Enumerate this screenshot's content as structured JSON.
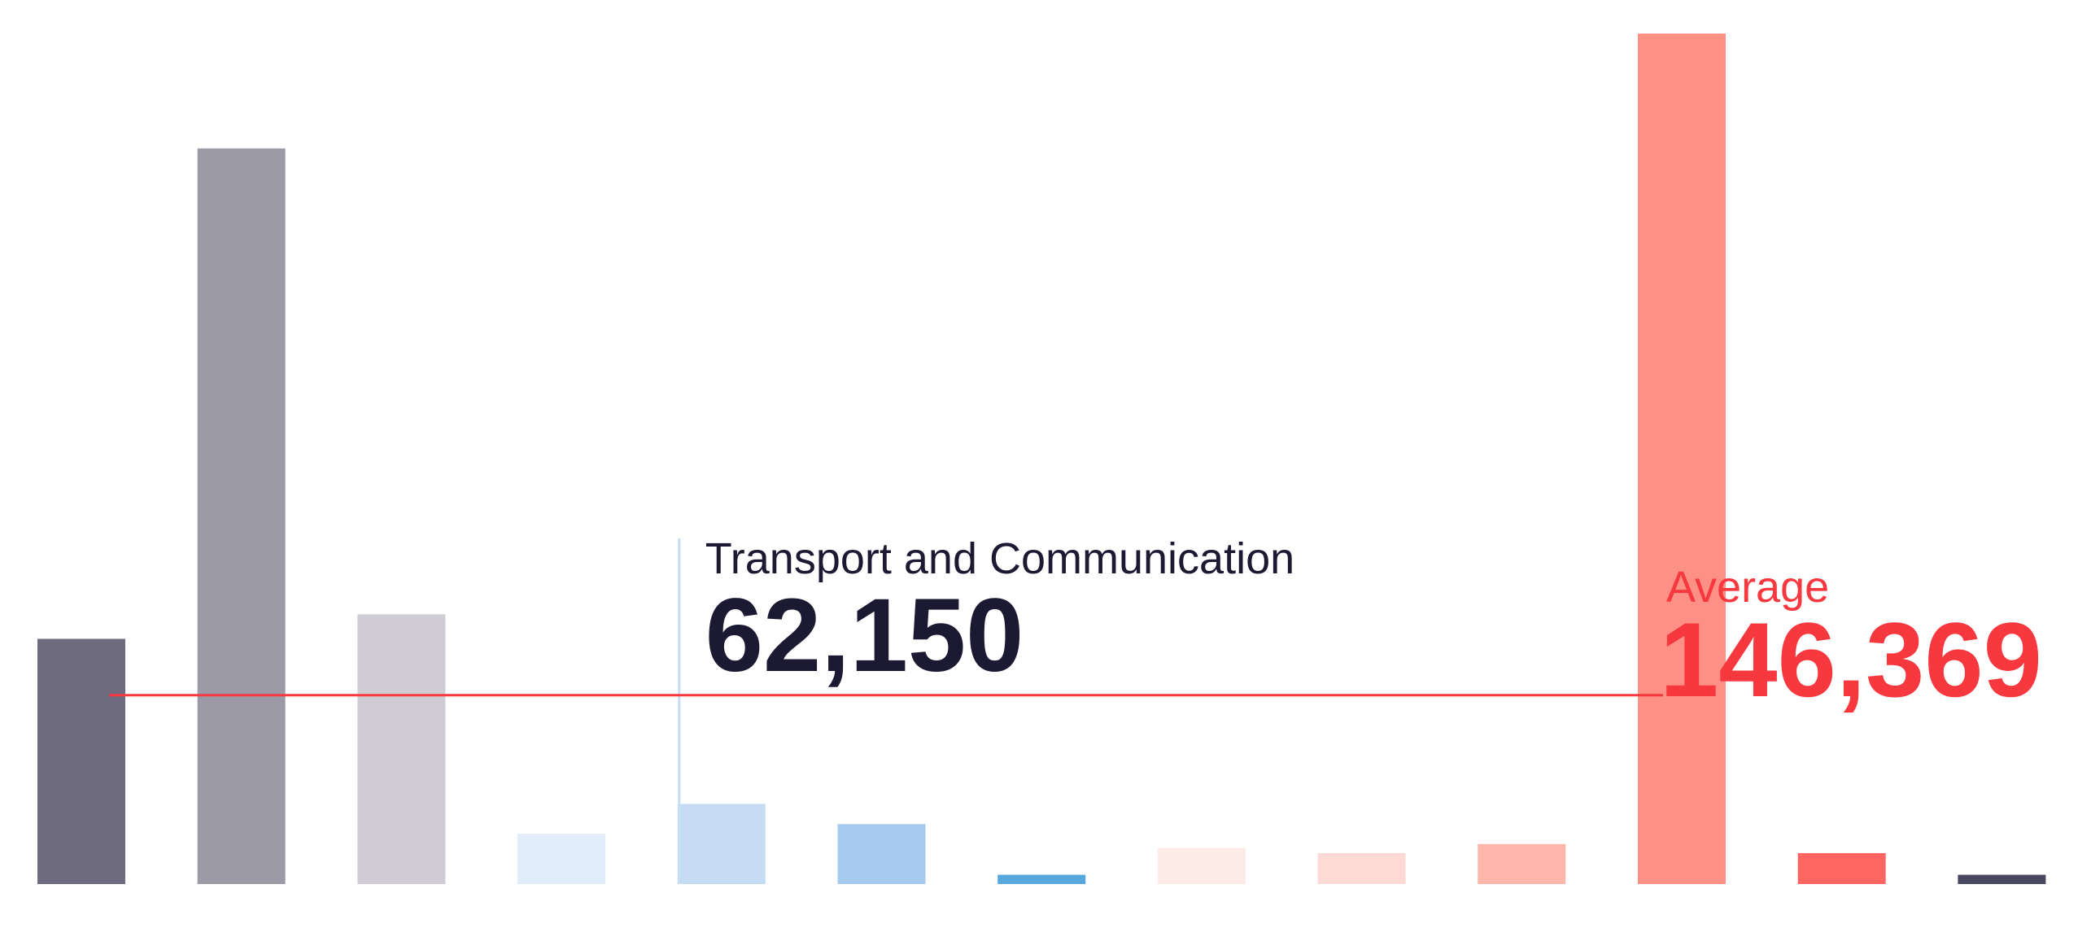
{
  "chart_data": {
    "type": "bar",
    "categories": [
      null,
      null,
      null,
      null,
      "Transport and Communication",
      null,
      null,
      null,
      null,
      null,
      null,
      null,
      null
    ],
    "values": [
      190000,
      570000,
      209000,
      39000,
      62150,
      46500,
      7200,
      28000,
      24000,
      31000,
      659000,
      24000,
      7200
    ],
    "value_labels": [
      null,
      null,
      null,
      null,
      "62,150",
      null,
      null,
      null,
      null,
      null,
      null,
      null,
      null
    ],
    "colors": [
      "#6e6b7e",
      "#9d9aa8",
      "#cfccd4",
      "#e2edfa",
      "#c5dcf3",
      "#a7cbee",
      "#5aa7de",
      "#fdebe8",
      "#fddad5",
      "#feb5aa",
      "#ff9086",
      "#ff6662",
      "#4a4760"
    ],
    "highlight_color": "#c5dcf3",
    "label_color": "#1c1a33",
    "average": {
      "label": "Average",
      "value": 146369,
      "value_label": "146,369",
      "color": "#f7383f"
    },
    "ylim": [
      0,
      685000
    ]
  }
}
